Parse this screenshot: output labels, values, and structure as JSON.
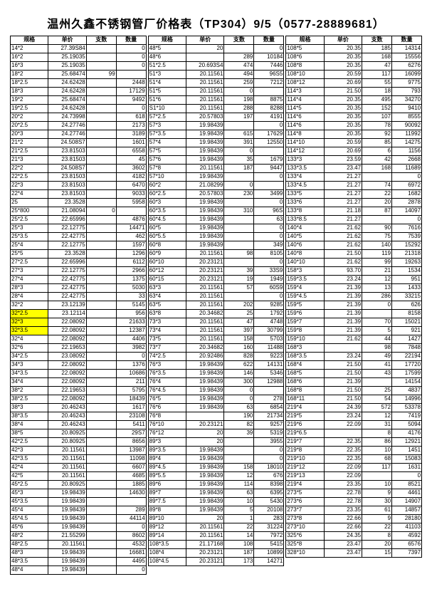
{
  "title": "温州久鑫不锈钢管厂价格表（TP304）9/5（0577-28889681）",
  "headers": [
    "规格",
    "单价",
    "支数",
    "数量"
  ],
  "highlightSpecs": [
    "32*2.5",
    "32*3",
    "32*3.5"
  ],
  "groups": [
    [
      [
        "14*2",
        "27.39S84",
        "",
        "0"
      ],
      [
        "16*2",
        "25.19035",
        "",
        "0"
      ],
      [
        "16*3",
        "25.19035",
        "",
        "0"
      ],
      [
        "18*2",
        "25.68474",
        "99",
        ""
      ],
      [
        "18*2.5",
        "24.62428",
        "",
        "2448"
      ],
      [
        "18*3",
        "24.62428",
        "",
        "17129"
      ],
      [
        "19*2",
        "25.68474",
        "",
        "9492"
      ],
      [
        "19*2.5",
        "24.62428",
        "",
        "0"
      ],
      [
        "20*2",
        "24.73998",
        "",
        "618"
      ],
      [
        "20*2.5",
        "24.27746",
        "",
        "2173"
      ],
      [
        "20*3",
        "24.27746",
        "",
        "3189"
      ],
      [
        "21*2",
        "24.508S7",
        "",
        "1601"
      ],
      [
        "21*2.5",
        "23.81503",
        "",
        "6558"
      ],
      [
        "21*3",
        "23.81503",
        "",
        "45"
      ],
      [
        "22*2",
        "24.508S7",
        "",
        "3602"
      ],
      [
        "22*2.5",
        "23.81503",
        "",
        "4182"
      ],
      [
        "22*3",
        "23.81503",
        "",
        "6470"
      ],
      [
        "22*4",
        "23.81503",
        "",
        "9033"
      ],
      [
        "25",
        "23.3528",
        "",
        "5958"
      ],
      [
        "25*800",
        "21.08094",
        "0",
        ""
      ],
      [
        "25*2.5",
        "22.65996",
        "",
        "4876"
      ],
      [
        "25*3",
        "22.12775",
        "",
        "14471"
      ],
      [
        "25*3.5",
        "22.42775",
        "",
        "462"
      ],
      [
        "25*4",
        "22.12775",
        "",
        "1597"
      ],
      [
        "25*5",
        "23.3528",
        "",
        "1296"
      ],
      [
        "27*2.5",
        "22.65996",
        "",
        "6112"
      ],
      [
        "27*3",
        "22.12775",
        "",
        "2966"
      ],
      [
        "27*4",
        "22.42775",
        "",
        "1375"
      ],
      [
        "28*3",
        "22.42775",
        "",
        "5030"
      ],
      [
        "28*4",
        "22.42775",
        "",
        "33"
      ],
      [
        "32*2",
        "23.12139",
        "",
        "5145"
      ],
      [
        "32*2.5",
        "23.12114",
        "",
        "956"
      ],
      [
        "32*3",
        "22.08092",
        "",
        "21633"
      ],
      [
        "32*3.5",
        "22.08092",
        "",
        "12387"
      ],
      [
        "32*4",
        "22.08092",
        "",
        "4406"
      ],
      [
        "32*6",
        "22.19653",
        "",
        "3982"
      ],
      [
        "34*2.5",
        "23.08092",
        "",
        "0"
      ],
      [
        "34*3",
        "22.08092",
        "",
        "1376"
      ],
      [
        "34*3.5",
        "22.08092",
        "",
        "10686"
      ],
      [
        "34*4",
        "22.08092",
        "",
        "211"
      ],
      [
        "38*2",
        "22.19653",
        "",
        "5795"
      ],
      [
        "38*2.5",
        "22.08092",
        "",
        "18439"
      ],
      [
        "38*3",
        "20.46243",
        "",
        "1617"
      ],
      [
        "38*3.5",
        "20.46243",
        "",
        "23108"
      ],
      [
        "38*4",
        "20.46243",
        "",
        "5411"
      ],
      [
        "38*5",
        "20.80925",
        "",
        "29S7"
      ],
      [
        "42*2.5",
        "20.80925",
        "",
        "8656"
      ],
      [
        "42*3",
        "20.11561",
        "",
        "13987"
      ],
      [
        "42*3.5",
        "20.11561",
        "",
        "11098"
      ],
      [
        "42*4",
        "20.11561",
        "",
        "6607"
      ],
      [
        "42*5",
        "20.11561",
        "",
        "4685"
      ],
      [
        "45*2.5",
        "20.80925",
        "",
        "1885"
      ],
      [
        "45*3",
        "19.98439",
        "",
        "14630"
      ],
      [
        "45*3.5",
        "19.98439",
        "",
        ""
      ],
      [
        "45*4",
        "19.98439",
        "",
        "289"
      ],
      [
        "45*4.5",
        "19.98439",
        "",
        "44114"
      ],
      [
        "45*6",
        "19.98439",
        "",
        "0"
      ],
      [
        "48*2",
        "21.55299",
        "",
        "8602"
      ],
      [
        "48*2.5",
        "20.11561",
        "",
        "4532"
      ],
      [
        "48*3",
        "19.98439",
        "",
        "16681"
      ],
      [
        "48*3.5",
        "19.98439",
        "",
        "4495"
      ],
      [
        "48*4",
        "19.98439",
        "",
        "0"
      ]
    ],
    [
      [
        "48*5",
        "20",
        "",
        "0"
      ],
      [
        "48*6",
        "",
        "289",
        "10184"
      ],
      [
        "51*2.5",
        "20.693S4",
        "474",
        "7446"
      ],
      [
        "51*3",
        "20.11561",
        "494",
        "96S5"
      ],
      [
        "51*4",
        "20.11561",
        "259",
        "7212"
      ],
      [
        "51*5",
        "20.11561",
        "0",
        ""
      ],
      [
        "51*6",
        "20.11561",
        "198",
        "8875"
      ],
      [
        "S1*10",
        "20.11561",
        "288",
        "8288"
      ],
      [
        "57*2.5",
        "20.57803",
        "197",
        "4191"
      ],
      [
        "57*3",
        "19.98439",
        "",
        "0"
      ],
      [
        "57*3.5",
        "19.98439",
        "615",
        "17629"
      ],
      [
        "57*4",
        "19.98439",
        "391",
        "12550"
      ],
      [
        "57*5",
        "19.98439",
        "0",
        ""
      ],
      [
        "57*6",
        "19.98439",
        "35",
        "1679"
      ],
      [
        "57*8",
        "20.11561",
        "187",
        "9447"
      ],
      [
        "57*10",
        "19.98439",
        "",
        "0"
      ],
      [
        "60*2",
        "21.08299",
        "0",
        ""
      ],
      [
        "60*2.5",
        "20.57803",
        "230",
        "3499"
      ],
      [
        "60*3",
        "19.98439",
        "",
        "0"
      ],
      [
        "60*3.5",
        "19.98439",
        "310",
        "96S"
      ],
      [
        "60*4.5",
        "19.98439",
        "",
        "63"
      ],
      [
        "60*5",
        "19.98439",
        "",
        "0"
      ],
      [
        "60*5.5",
        "19.98439",
        "",
        "0"
      ],
      [
        "60*8",
        "19.98439",
        "",
        "349"
      ],
      [
        "60*9",
        "20.11561",
        "98",
        "8105"
      ],
      [
        "60*10",
        "20.23121",
        "",
        "0"
      ],
      [
        "60*12",
        "20.23121",
        "39",
        "33S9"
      ],
      [
        "60*15",
        "20.23121",
        "19",
        "1949"
      ],
      [
        "63*3",
        "20.11561",
        "57",
        "60S9"
      ],
      [
        "63*4",
        "20.11561",
        "",
        "0"
      ],
      [
        "63*5",
        "20.11561",
        "202",
        "9285"
      ],
      [
        "63*8",
        "20.34682",
        "25",
        "1792"
      ],
      [
        "73*3",
        "20.11561",
        "47",
        "4748"
      ],
      [
        "73*4",
        "20.11561",
        "397",
        "30799"
      ],
      [
        "73*5",
        "20.11561",
        "158",
        "5703"
      ],
      [
        "73*7",
        "20.34682",
        "160",
        "11488"
      ],
      [
        "74*2.5",
        "20.92486",
        "828",
        "9223"
      ],
      [
        "76*3",
        "19.98439",
        "622",
        "14131"
      ],
      [
        "76*3.5",
        "19.98439",
        "146",
        "5346"
      ],
      [
        "76*4",
        "19.98439",
        "300",
        "12988"
      ],
      [
        "76*4.5",
        "19.98439",
        "0",
        ""
      ],
      [
        "76*5",
        "19.98439",
        "0",
        "278"
      ],
      [
        "76*6",
        "19.98439",
        "63",
        "6854"
      ],
      [
        "76*8",
        "",
        "190",
        "21734"
      ],
      [
        "76*10",
        "20.23121",
        "82",
        "9257"
      ],
      [
        "76*12",
        "20",
        "39",
        "5319"
      ],
      [
        "89*3",
        "20",
        "",
        "3955"
      ],
      [
        "89*3.5",
        "19.98439",
        "",
        "0"
      ],
      [
        "89*4",
        "19.98439",
        "",
        "0"
      ],
      [
        "89*4.5",
        "19.98439",
        "158",
        "18010"
      ],
      [
        "89*5.5",
        "19.98439",
        "12",
        "676"
      ],
      [
        "89*6",
        "19.98439",
        "114",
        "8398"
      ],
      [
        "89*7",
        "19.98439",
        "63",
        "6395"
      ],
      [
        "89*7.5",
        "19.98439",
        "10",
        "5430"
      ],
      [
        "89*8",
        "19.98439",
        "5",
        "20108"
      ],
      [
        "89*10",
        "20",
        "1",
        "283"
      ],
      [
        "89*12",
        "20.11561",
        "22",
        "31224"
      ],
      [
        "89*14",
        "20.11561",
        "14",
        "7972"
      ],
      [
        "108*3.5",
        "21.17168",
        "108",
        "5415"
      ],
      [
        "108*4",
        "20.23121",
        "187",
        "10899"
      ],
      [
        "108*4.5",
        "20.23121",
        "173",
        "14271"
      ]
    ],
    [
      [
        "108*5",
        "20.35",
        "185",
        "14314"
      ],
      [
        "108*6",
        "20.35",
        "168",
        "15556"
      ],
      [
        "108*8",
        "20.35",
        "47",
        "6276"
      ],
      [
        "108*10",
        "20.59",
        "117",
        "16099"
      ],
      [
        "108*12",
        "20.69",
        "55",
        "9775"
      ],
      [
        "114*3",
        "21.50",
        "18",
        "793"
      ],
      [
        "114*4",
        "20.35",
        "495",
        "34270"
      ],
      [
        "114*5",
        "20.35",
        "152",
        "9410"
      ],
      [
        "114*6",
        "20.35",
        "107",
        "8555"
      ],
      [
        "114*6",
        "20.35",
        "78",
        "90092"
      ],
      [
        "114*8",
        "20.35",
        "92",
        "11992"
      ],
      [
        "114*10",
        "20.59",
        "85",
        "14275"
      ],
      [
        "114*12",
        "20.69",
        "6",
        "1156"
      ],
      [
        "133*3",
        "23.59",
        "42",
        "2668"
      ],
      [
        "133*3.5",
        "23.47",
        "168",
        "11689"
      ],
      [
        "133*4",
        "21.27",
        "",
        "0"
      ],
      [
        "133*4.5",
        "21.27",
        "74",
        "6972"
      ],
      [
        "133*5",
        "21.27",
        "22",
        "1682"
      ],
      [
        "133*6",
        "21.27",
        "20",
        "2878"
      ],
      [
        "133*8",
        "21.18",
        "87",
        "14097"
      ],
      [
        "133*8.5",
        "21.27",
        "",
        "0"
      ],
      [
        "140*4",
        "21.62",
        "90",
        "7616"
      ],
      [
        "140*5",
        "21.62",
        "75",
        "7539"
      ],
      [
        "140*6",
        "21.62",
        "140",
        "15292"
      ],
      [
        "140*8",
        "21.50",
        "119",
        "21318"
      ],
      [
        "140*10",
        "21.62",
        "99",
        "19263"
      ],
      [
        "158*3",
        "93.70",
        "21",
        "1534"
      ],
      [
        "159*3.5",
        "23.24",
        "12",
        "951"
      ],
      [
        "159*4",
        "21.39",
        "13",
        "1433"
      ],
      [
        "159*4.5",
        "21.39",
        "286",
        "33215"
      ],
      [
        "159*5",
        "21.39",
        "0",
        "626"
      ],
      [
        "159*6",
        "21.39",
        "",
        "8158"
      ],
      [
        "159*7",
        "21.39",
        "70",
        "15021"
      ],
      [
        "159*8",
        "21.39",
        "5",
        "921"
      ],
      [
        "159*10",
        "21.62",
        "44",
        "1427"
      ],
      [
        "168*3",
        "",
        "98",
        "7848"
      ],
      [
        "168*3.5",
        "23.24",
        "49",
        "22194"
      ],
      [
        "168*4",
        "21.50",
        "41",
        "17720"
      ],
      [
        "168*5",
        "21.50",
        "43",
        "17599"
      ],
      [
        "168*6",
        "21.39",
        "",
        "14154"
      ],
      [
        "168*8",
        "21.50",
        "25",
        "4837"
      ],
      [
        "168*11",
        "21.50",
        "54",
        "14996"
      ],
      [
        "219*4",
        "24.39",
        "572",
        "53378"
      ],
      [
        "219*5",
        "23.24",
        "12",
        "7419"
      ],
      [
        "219*6",
        "22.09",
        "31",
        "5094"
      ],
      [
        "219*6.5",
        "",
        "8",
        "4176"
      ],
      [
        "219*7",
        "22.35",
        "86",
        "12921"
      ],
      [
        "219*8",
        "22.35",
        "10",
        "1451"
      ],
      [
        "219*10",
        "22.35",
        "68",
        "15083"
      ],
      [
        "219*12",
        "22.09",
        "117",
        "1631"
      ],
      [
        "219*13",
        "22.09",
        "",
        "0"
      ],
      [
        "219*4",
        "23.35",
        "10",
        "8521"
      ],
      [
        "273*5",
        "22.78",
        "9",
        "4461"
      ],
      [
        "273*6",
        "22.78",
        "30",
        "14907"
      ],
      [
        "273*7",
        "23.35",
        "61",
        "14857"
      ],
      [
        "273*8",
        "22.66",
        "9",
        "28180"
      ],
      [
        "273*10",
        "22.66",
        "22",
        "41103"
      ],
      [
        "325*6",
        "24.35",
        "8",
        "4592"
      ],
      [
        "325*8",
        "23.47",
        "20",
        "6576"
      ],
      [
        "328*10",
        "23.47",
        "15",
        "7397"
      ]
    ]
  ]
}
